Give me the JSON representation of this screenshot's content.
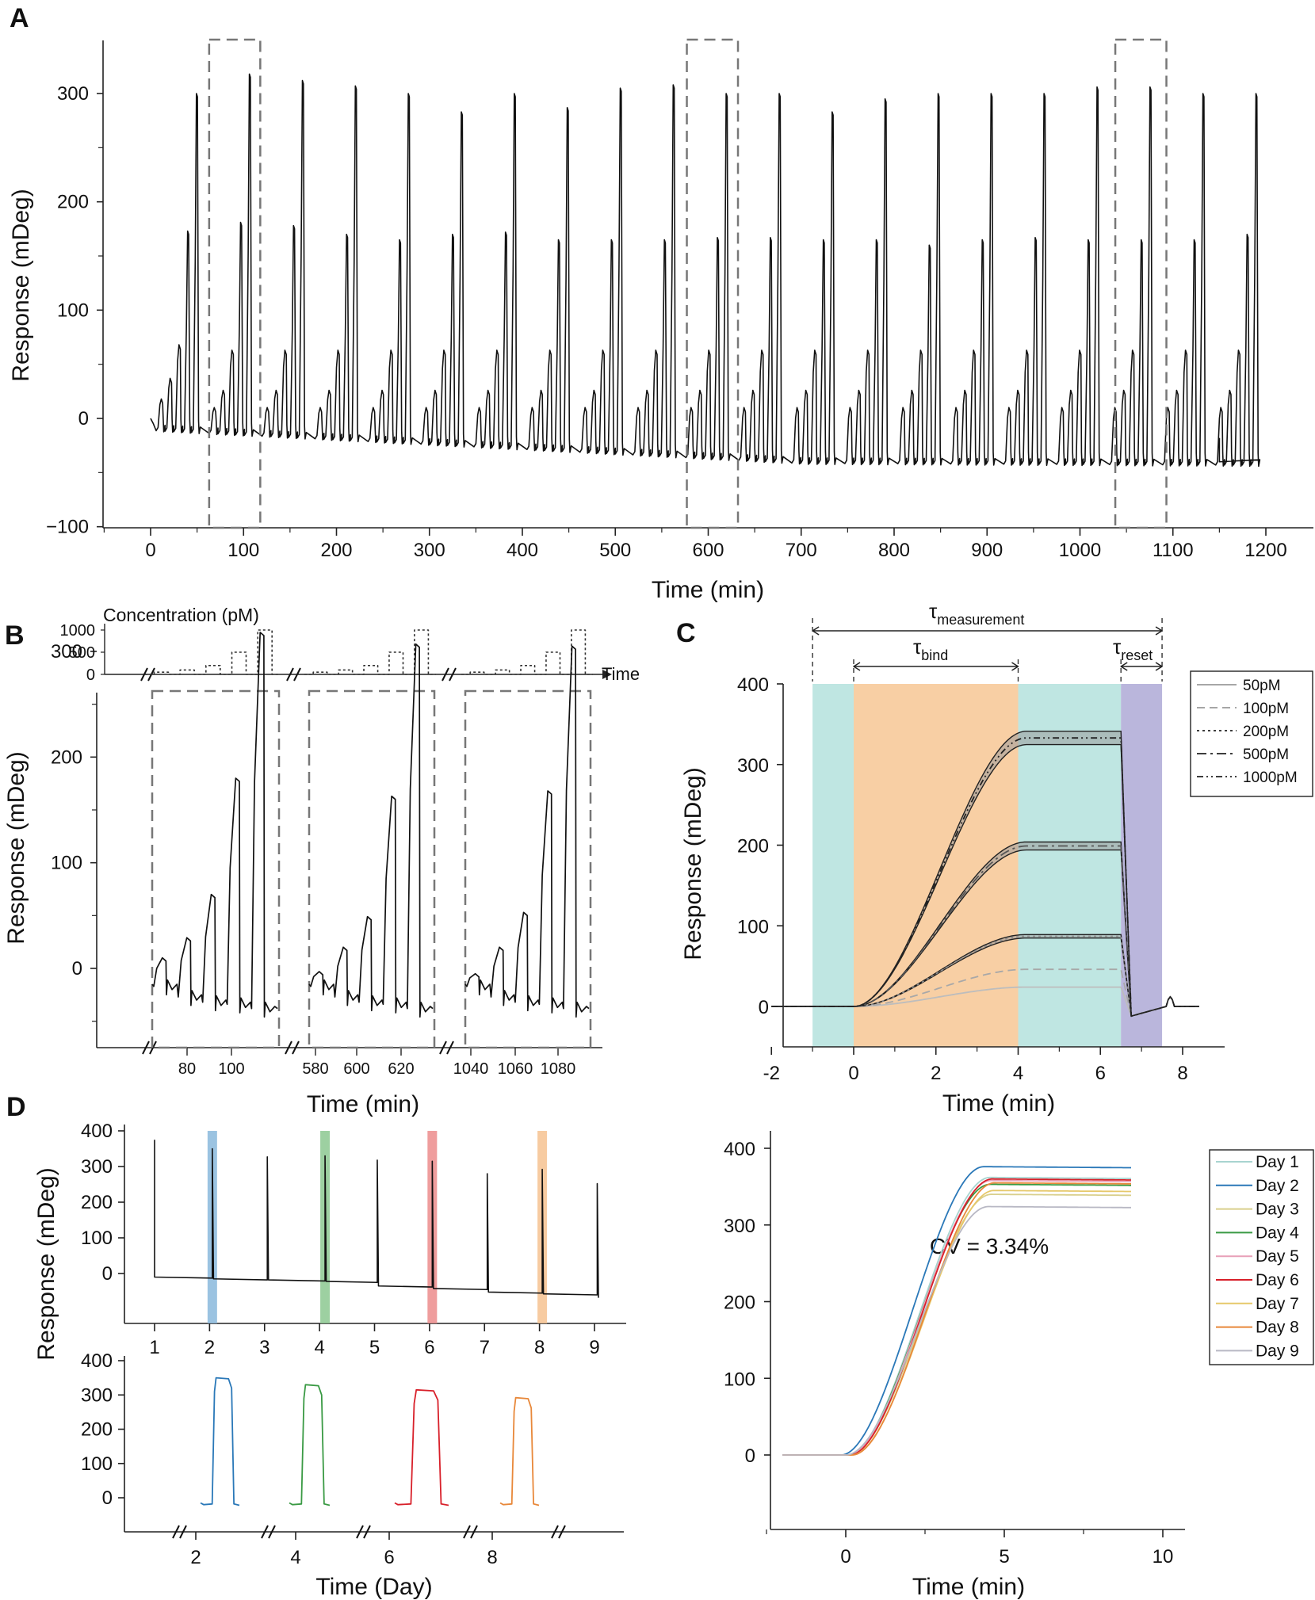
{
  "panels": {
    "A": {
      "letter": "A",
      "xlabel": "Time (min)",
      "ylabel": "Response (mDeg)",
      "xticks": [
        "0",
        "100",
        "200",
        "300",
        "400",
        "500",
        "600",
        "700",
        "800",
        "900",
        "1000",
        "1100",
        "1200"
      ],
      "yticks": [
        "−100",
        "0",
        "100",
        "200",
        "300"
      ]
    },
    "B": {
      "letter": "B",
      "conc_label": "Concentration (pM)",
      "conc_ticks": [
        "1000",
        "500",
        "0"
      ],
      "time_arrow_label": "Time",
      "xlabel": "Time (min)",
      "ylabel": "Response (mDeg)",
      "yticks": [
        "0",
        "100",
        "200",
        "300"
      ],
      "xticks_seg1": [
        "80",
        "100"
      ],
      "xticks_seg2": [
        "580",
        "600",
        "620"
      ],
      "xticks_seg3": [
        "1040",
        "1060",
        "1080"
      ]
    },
    "C": {
      "letter": "C",
      "tau_measurement": "τ",
      "tau_measurement_sub": "measurement",
      "tau_bind": "τ",
      "tau_bind_sub": "bind",
      "tau_reset": "τ",
      "tau_reset_sub": "reset",
      "xlabel": "Time (min)",
      "ylabel": "Response (mDeg)",
      "xticks": [
        "-2",
        "0",
        "2",
        "4",
        "6",
        "8"
      ],
      "yticks": [
        "0",
        "100",
        "200",
        "300",
        "400"
      ],
      "legend": [
        "50pM",
        "100pM",
        "200pM",
        "500pM",
        "1000pM"
      ]
    },
    "D": {
      "letter": "D",
      "ylabel": "Response (mDeg)",
      "top_xticks": [
        "1",
        "2",
        "3",
        "4",
        "5",
        "6",
        "7",
        "8",
        "9"
      ],
      "top_yticks": [
        "0",
        "100",
        "200",
        "300",
        "400"
      ],
      "bottom_xticks": [
        "2",
        "4",
        "6",
        "8"
      ],
      "bottom_yticks": [
        "0",
        "100",
        "200",
        "300",
        "400"
      ],
      "bottom_xlabel": "Time (Day)",
      "right_xticks": [
        "0",
        "5",
        "10"
      ],
      "right_yticks": [
        "0",
        "100",
        "200",
        "300",
        "400"
      ],
      "right_xlabel": "Time (min)",
      "cv_text": "CV = 3.34%",
      "legend": [
        "Day 1",
        "Day 2",
        "Day 3",
        "Day 4",
        "Day 5",
        "Day 6",
        "Day 7",
        "Day 8",
        "Day 9"
      ],
      "colors": {
        "day1": "#a8d4d0",
        "day2": "#2a78b8",
        "day3": "#d9cf8c",
        "day4": "#3a9a44",
        "day5": "#e8a0b8",
        "day6": "#d8202a",
        "day7": "#e6c86a",
        "day8": "#e8883a",
        "day9": "#b8b8c4",
        "highlight_blue": "#8ab8dc",
        "highlight_green": "#8cc890",
        "highlight_red": "#ec8c8c",
        "highlight_orange": "#f6c290"
      }
    }
  },
  "chart_data": [
    {
      "panel": "A",
      "type": "line",
      "xlabel": "Time (min)",
      "ylabel": "Response (mDeg)",
      "xlim": [
        -50,
        1230
      ],
      "ylim": [
        -100,
        350
      ],
      "cycles": 21,
      "cycle_period_min": 57,
      "injections_per_cycle_pM": [
        50,
        100,
        200,
        500,
        1000
      ],
      "peak_1000pM_mDeg": [
        300,
        318,
        312,
        307,
        300,
        283,
        300,
        287,
        305,
        308,
        300,
        300,
        283,
        295,
        300,
        300,
        300,
        306,
        306,
        300,
        300
      ],
      "peak_500pM_mDeg": [
        173,
        181,
        178,
        170,
        165,
        170,
        172,
        165,
        165,
        165,
        167,
        167,
        165,
        165,
        160,
        165,
        167,
        165,
        165,
        165,
        170
      ],
      "baseline_drift_mDeg": [
        -15,
        -40
      ],
      "highlight_windows_min": [
        [
          63,
          118
        ],
        [
          577,
          632
        ],
        [
          1038,
          1093
        ]
      ]
    },
    {
      "panel": "B",
      "type": "line",
      "xlabel": "Time (min)",
      "ylabel": "Response (mDeg)",
      "concentration_steps_pM": [
        50,
        100,
        200,
        500,
        1000
      ],
      "segments": [
        {
          "range_min": [
            63,
            118
          ],
          "peaks_mDeg": [
            10,
            29,
            70,
            180,
            318
          ]
        },
        {
          "range_min": [
            577,
            632
          ],
          "peaks_mDeg": [
            -3,
            20,
            49,
            163,
            307
          ]
        },
        {
          "range_min": [
            1038,
            1093
          ],
          "peaks_mDeg": [
            -5,
            20,
            53,
            168,
            305
          ]
        }
      ]
    },
    {
      "panel": "C",
      "type": "line",
      "xlabel": "Time (min)",
      "ylabel": "Response (mDeg)",
      "xlim": [
        -2.2,
        8.4
      ],
      "ylim": [
        -50,
        400
      ],
      "phases_min": {
        "baseline": [
          -1,
          0
        ],
        "bind": [
          0,
          4
        ],
        "dissociation": [
          4,
          6.5
        ],
        "reset": [
          6.5,
          7.5
        ]
      },
      "series": [
        {
          "name": "50pM",
          "plateau": 24
        },
        {
          "name": "100pM",
          "plateau": 46
        },
        {
          "name": "200pM",
          "plateau": 87
        },
        {
          "name": "500pM",
          "plateau": 199
        },
        {
          "name": "1000pM",
          "plateau": 333
        }
      ]
    },
    {
      "panel": "D-top",
      "type": "line",
      "ylabel": "Response (mDeg)",
      "x_day": [
        1,
        2,
        3,
        4,
        5,
        6,
        7,
        8,
        9
      ],
      "spike_peaks_mDeg": [
        375,
        350,
        327,
        330,
        318,
        315,
        280,
        292,
        252
      ],
      "baseline_mDeg": [
        -10,
        -15,
        -18,
        -22,
        -35,
        -42,
        -52,
        -57,
        -68
      ]
    },
    {
      "panel": "D-bottom",
      "type": "line",
      "xlabel": "Time (Day)",
      "ylabel": "Response (mDeg)",
      "days": [
        2,
        4,
        6,
        8
      ],
      "plateaus_mDeg": [
        350,
        330,
        315,
        292
      ]
    },
    {
      "panel": "D-right",
      "type": "line",
      "xlabel": "Time (min)",
      "xlim": [
        -2,
        10
      ],
      "ylim": [
        -30,
        410
      ],
      "series": [
        {
          "name": "Day 1",
          "plateau": 362
        },
        {
          "name": "Day 2",
          "plateau": 376
        },
        {
          "name": "Day 3",
          "plateau": 340
        },
        {
          "name": "Day 4",
          "plateau": 353
        },
        {
          "name": "Day 5",
          "plateau": 358
        },
        {
          "name": "Day 6",
          "plateau": 360
        },
        {
          "name": "Day 7",
          "plateau": 345
        },
        {
          "name": "Day 8",
          "plateau": 355
        },
        {
          "name": "Day 9",
          "plateau": 324
        }
      ]
    }
  ]
}
